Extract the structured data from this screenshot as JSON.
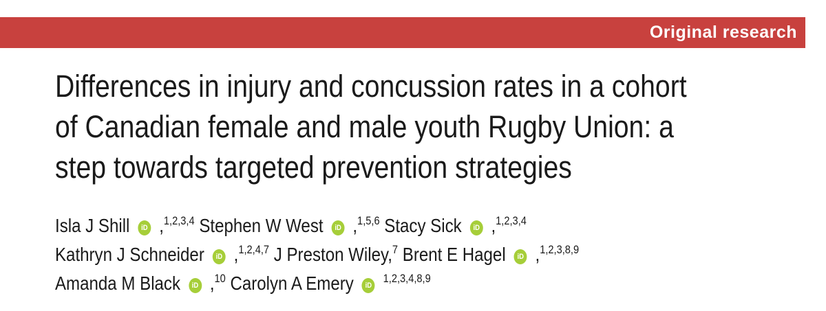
{
  "header": {
    "label": "Original research"
  },
  "title": {
    "lines": [
      "Differences in injury and concussion rates in a cohort",
      "of Canadian female and male youth Rugby Union: a",
      "step towards targeted prevention strategies"
    ]
  },
  "orcid_label": "iD",
  "authors": {
    "lines": [
      [
        {
          "name": "Isla J Shill",
          "orcid": true,
          "separator": ",",
          "affiliations": "1,2,3,4"
        },
        {
          "name": "Stephen W West",
          "orcid": true,
          "separator": ",",
          "affiliations": "1,5,6"
        },
        {
          "name": "Stacy Sick",
          "orcid": true,
          "separator": ",",
          "affiliations": "1,2,3,4"
        }
      ],
      [
        {
          "name": "Kathryn J Schneider",
          "orcid": true,
          "separator": ",",
          "affiliations": "1,2,4,7"
        },
        {
          "name": "J Preston Wiley",
          "orcid": false,
          "separator": ",",
          "affiliations": "7"
        },
        {
          "name": "Brent E Hagel",
          "orcid": true,
          "separator": ",",
          "affiliations": "1,2,3,8,9"
        }
      ],
      [
        {
          "name": "Amanda M Black",
          "orcid": true,
          "separator": ",",
          "affiliations": "10"
        },
        {
          "name": "Carolyn A Emery",
          "orcid": true,
          "affiliations": "1,2,3,4,8,9"
        }
      ]
    ]
  }
}
